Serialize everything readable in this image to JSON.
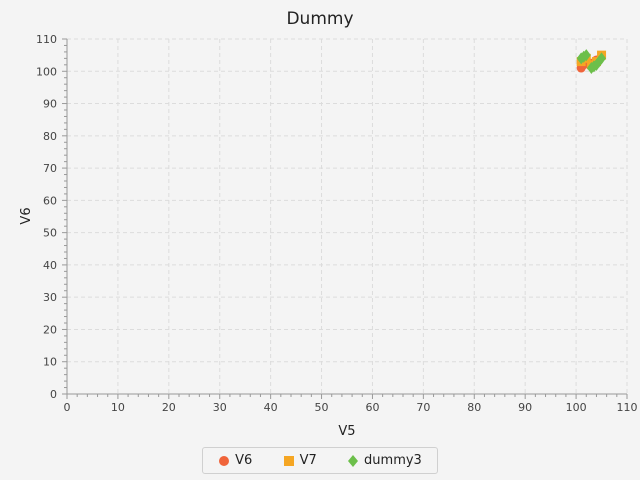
{
  "chart_data": {
    "type": "scatter",
    "title": "Dummy",
    "xlabel": "V5",
    "ylabel": "V6",
    "xlim": [
      0,
      110
    ],
    "ylim": [
      0,
      110
    ],
    "x_ticks": [
      0,
      10,
      20,
      30,
      40,
      50,
      60,
      70,
      80,
      90,
      100,
      110
    ],
    "y_ticks": [
      0,
      10,
      20,
      30,
      40,
      50,
      60,
      70,
      80,
      90,
      100,
      110
    ],
    "grid": true,
    "legend_position": "bottom",
    "series": [
      {
        "name": "V6",
        "marker": "circle",
        "color": "#f0643a",
        "points": [
          [
            101,
            101
          ],
          [
            101.5,
            102
          ],
          [
            102,
            103
          ],
          [
            103,
            102.5
          ],
          [
            104,
            103.5
          ],
          [
            105,
            104.5
          ]
        ]
      },
      {
        "name": "V7",
        "marker": "square",
        "color": "#f5a623",
        "points": [
          [
            101,
            103
          ],
          [
            102,
            104
          ],
          [
            103,
            102
          ],
          [
            104,
            103
          ],
          [
            105,
            105
          ]
        ]
      },
      {
        "name": "dummy3",
        "marker": "diamond",
        "color": "#6cbf4a",
        "points": [
          [
            101,
            104
          ],
          [
            101.5,
            104.5
          ],
          [
            102,
            105
          ],
          [
            103,
            101
          ],
          [
            103.5,
            101.5
          ],
          [
            104,
            102
          ],
          [
            104.5,
            103
          ],
          [
            105,
            104
          ]
        ]
      }
    ]
  }
}
